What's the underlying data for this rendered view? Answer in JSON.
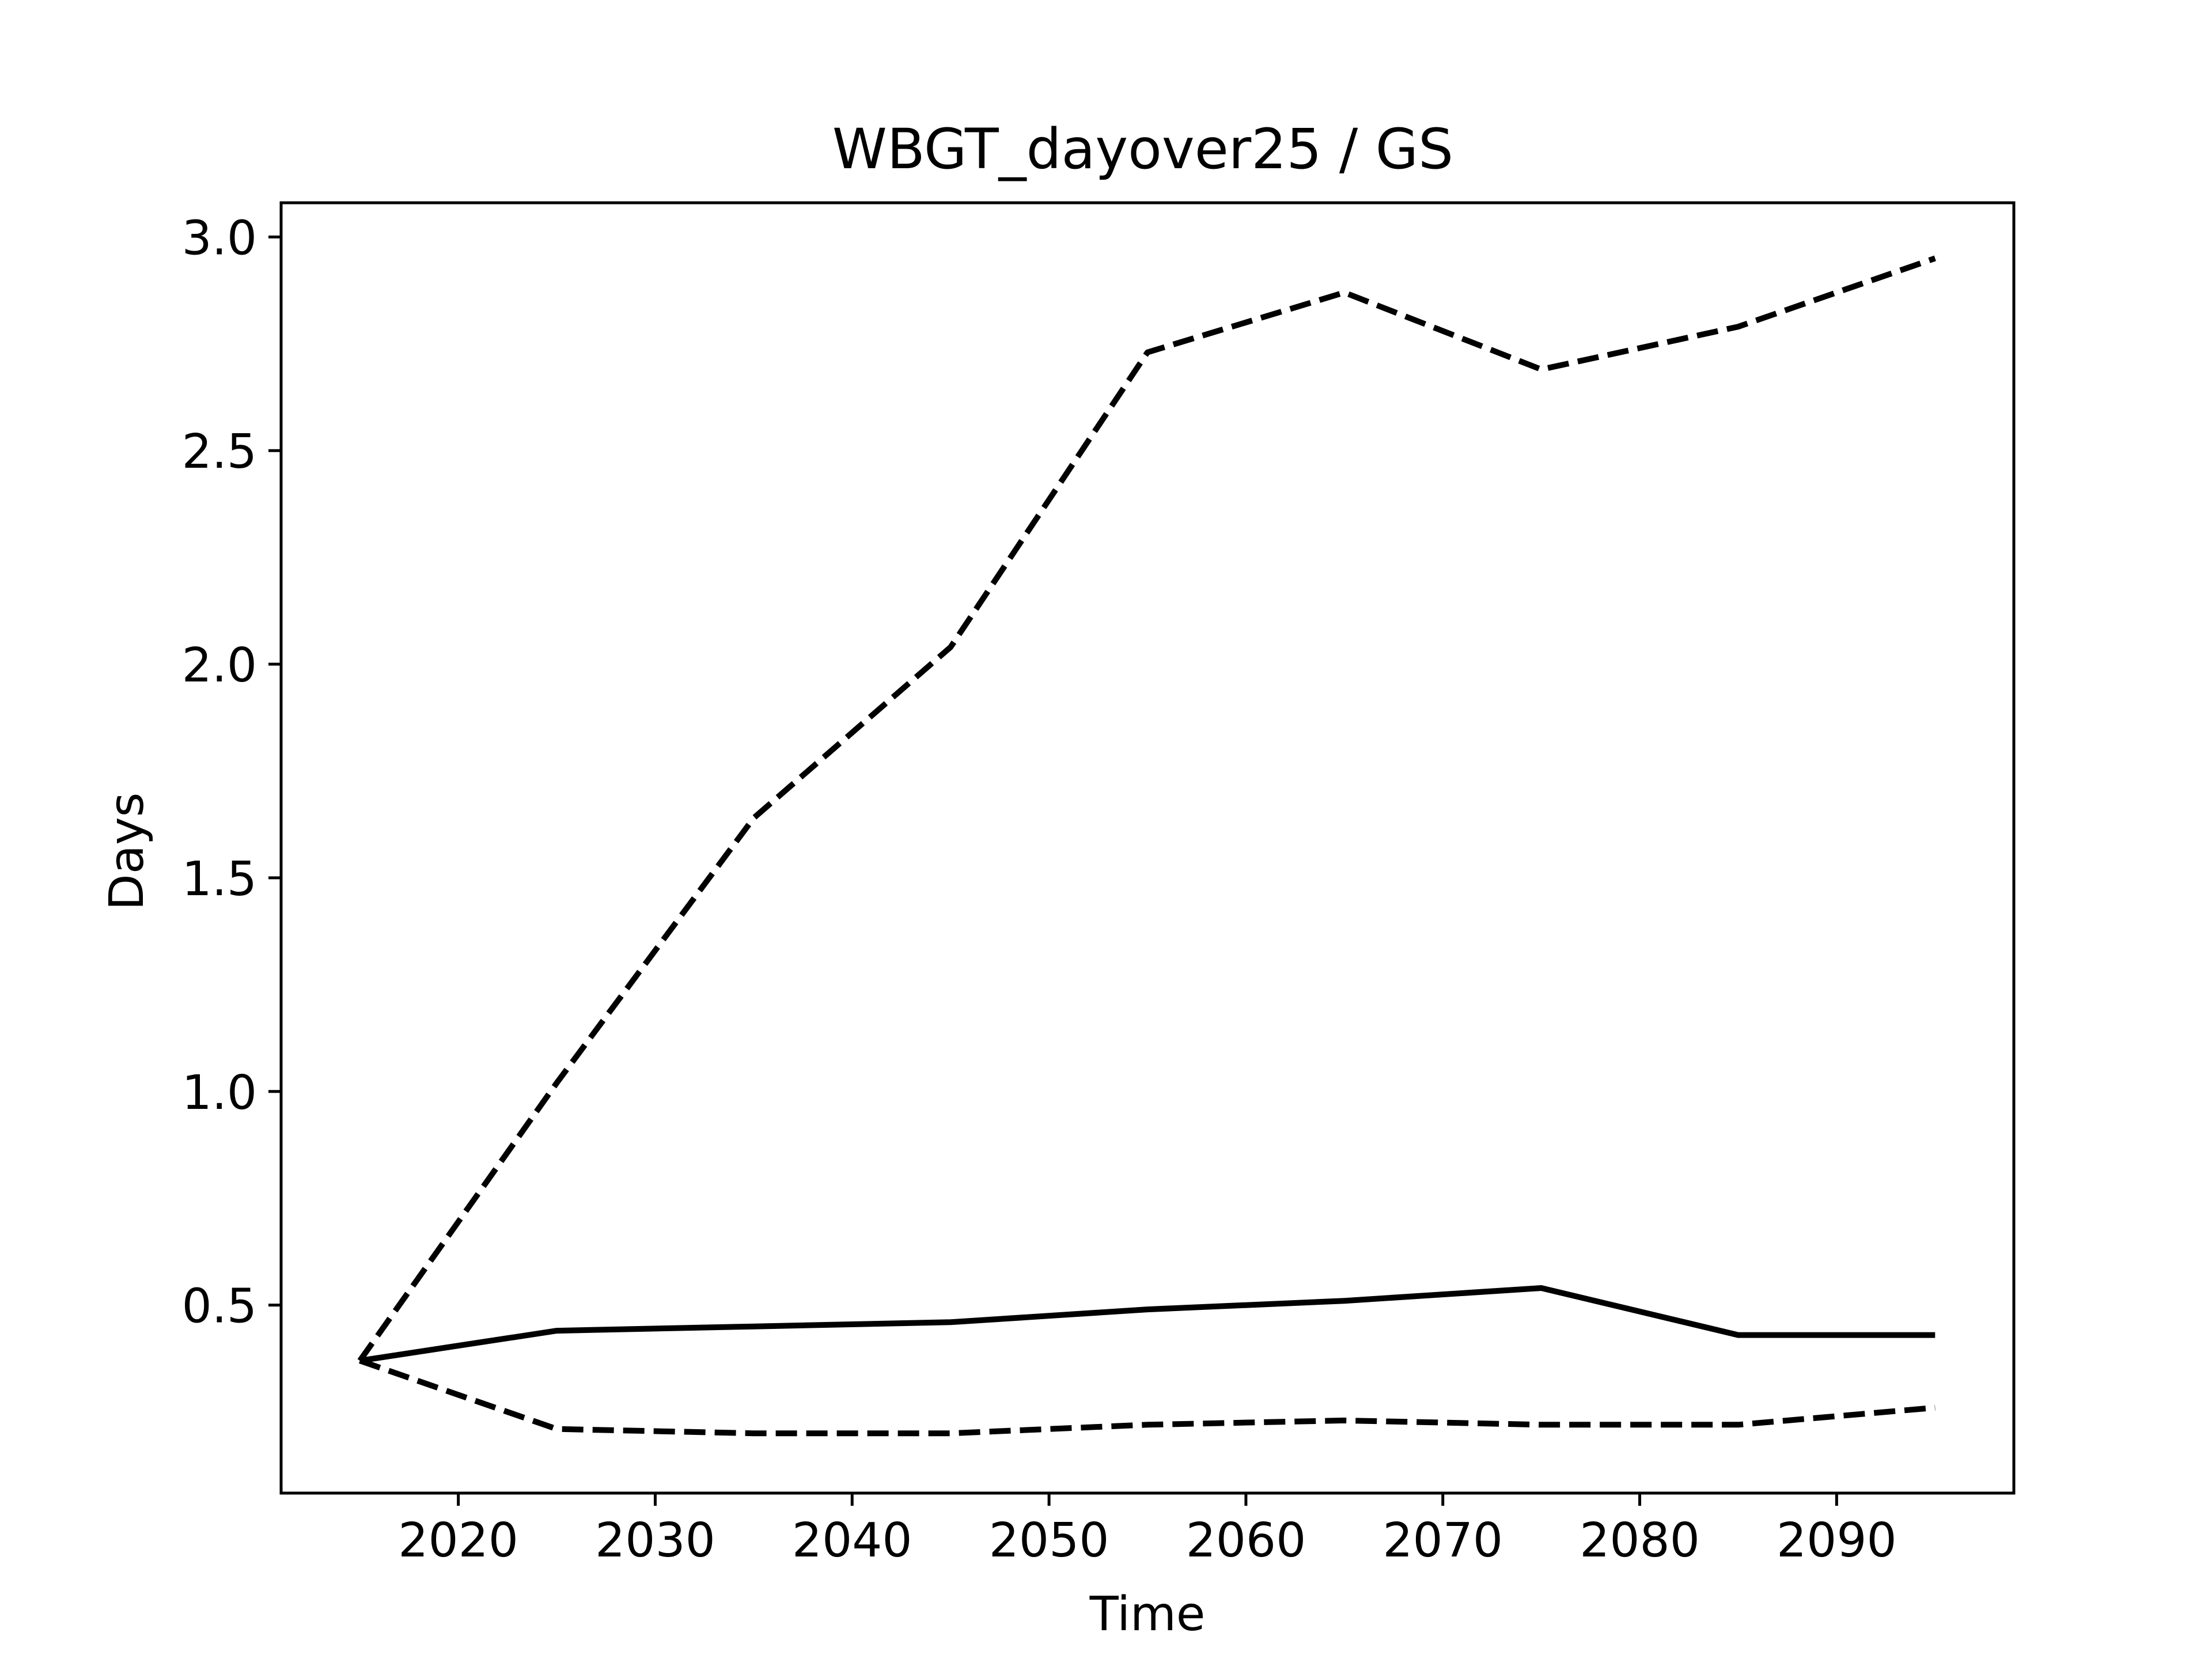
{
  "chart_data": {
    "type": "line",
    "title": "WBGT_dayover25 / GS",
    "xlabel": "Time",
    "ylabel": "Days",
    "xlim": [
      2011,
      2099
    ],
    "ylim": [
      0.06,
      3.08
    ],
    "xticks": [
      "2020",
      "2030",
      "2040",
      "2050",
      "2060",
      "2070",
      "2080",
      "2090"
    ],
    "yticks": [
      "0.5",
      "1.0",
      "1.5",
      "2.0",
      "2.5",
      "3.0"
    ],
    "grid": false,
    "legend": false,
    "x": [
      2015,
      2025,
      2035,
      2045,
      2055,
      2065,
      2075,
      2085,
      2095
    ],
    "series": [
      {
        "style": "dashed",
        "color": "#000000",
        "values": [
          0.37,
          1.02,
          1.64,
          2.04,
          2.73,
          2.87,
          2.69,
          2.79,
          2.95
        ]
      },
      {
        "style": "solid",
        "color": "#000000",
        "values": [
          0.37,
          0.44,
          0.45,
          0.46,
          0.49,
          0.51,
          0.54,
          0.43,
          0.43
        ]
      },
      {
        "style": "dashed",
        "color": "#000000",
        "values": [
          0.37,
          0.21,
          0.2,
          0.2,
          0.22,
          0.23,
          0.22,
          0.22,
          0.26
        ]
      }
    ]
  }
}
